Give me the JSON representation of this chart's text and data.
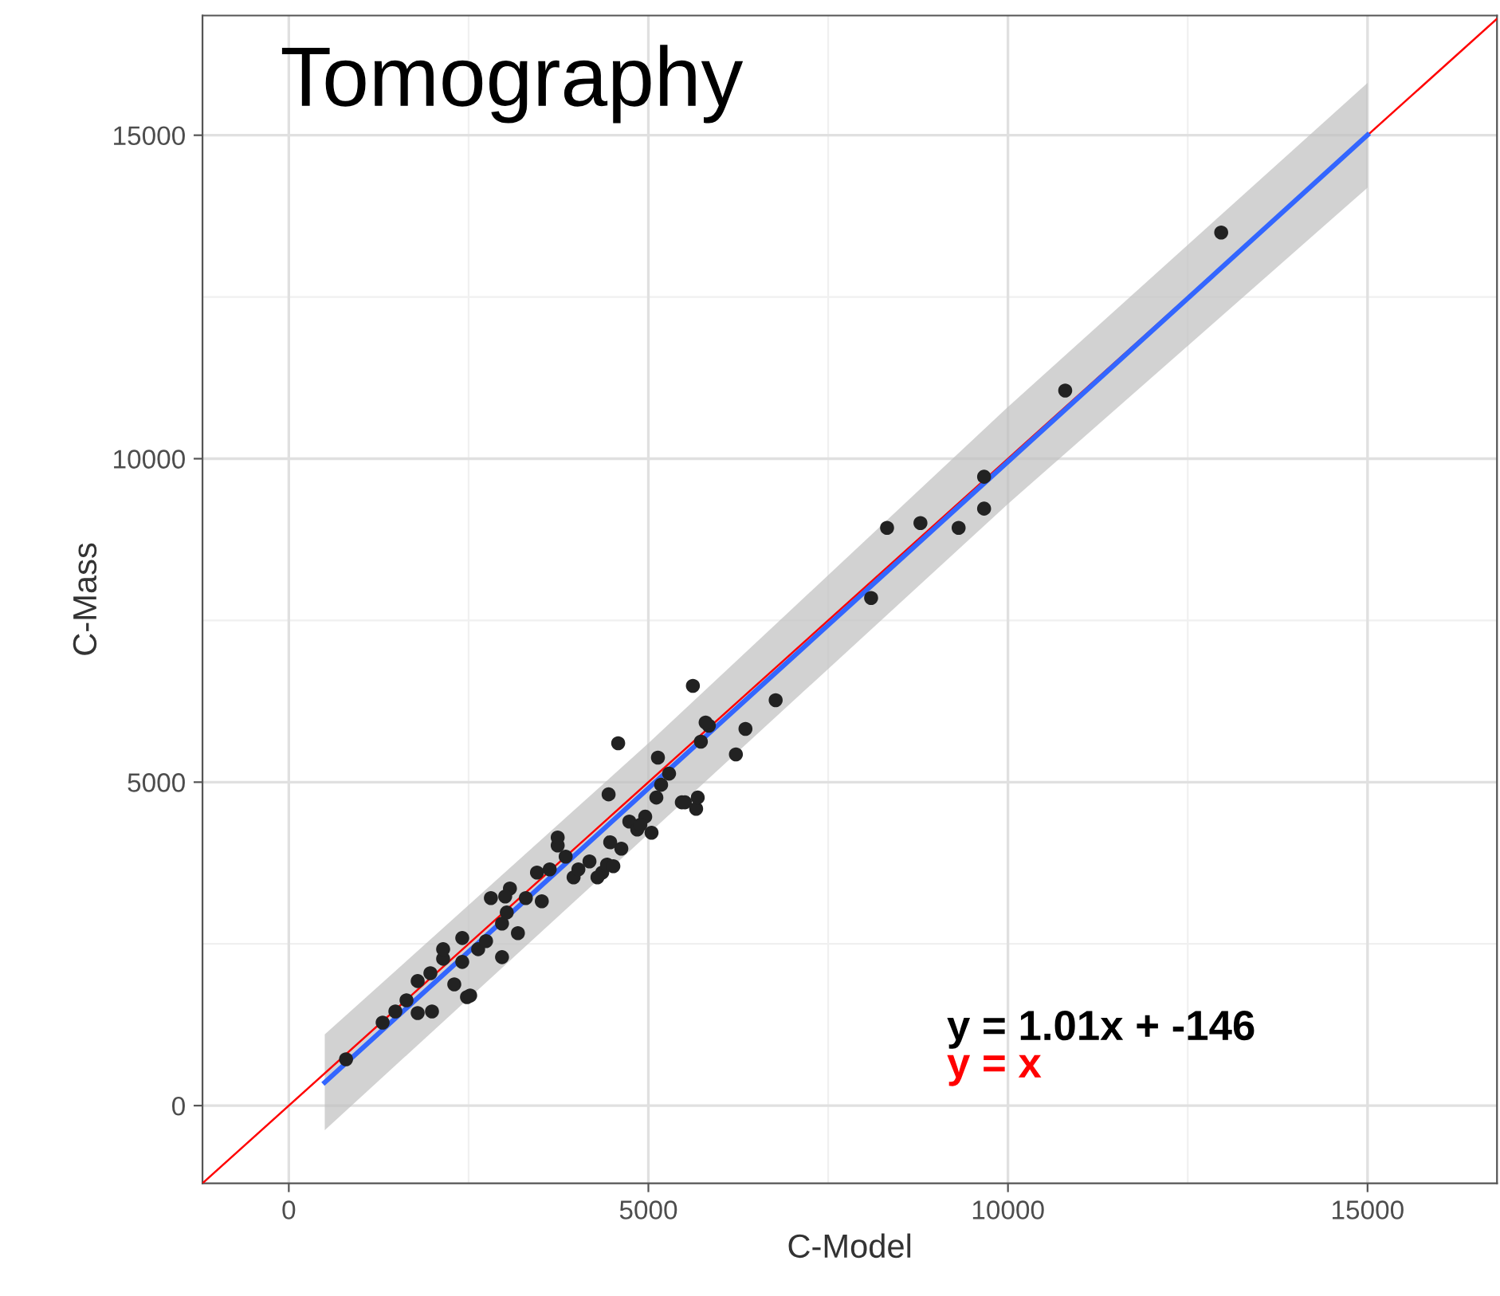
{
  "chart_data": {
    "type": "scatter",
    "title": "Tomography",
    "xlabel": "C-Model",
    "ylabel": "C-Mass",
    "annotations": [
      "y = 1.01x + -146"
    ],
    "xlim": [
      -1200,
      16800
    ],
    "ylim": [
      -1200,
      16850
    ],
    "xticks": [
      0,
      5000,
      10000,
      15000
    ],
    "yticks": [
      0,
      5000,
      10000,
      15000
    ],
    "grid": true,
    "marker": "circle",
    "series": [
      {
        "type": "line",
        "name": "y = x",
        "color": "#ff0000",
        "x": [
          -1200,
          16800
        ],
        "values": [
          -1200,
          16800
        ],
        "marker": "none"
      },
      {
        "type": "line",
        "color": "#3366ff",
        "x": [
          500,
          5000,
          10000,
          15000
        ],
        "values": [
          359,
          4904,
          9954,
          15004
        ],
        "lower": [
          -380,
          4200,
          9300,
          14190
        ],
        "upper": [
          1100,
          5600,
          10800,
          15810
        ],
        "marker": "none"
      },
      {
        "color": "#222222",
        "x": [
          796,
          1305,
          1482,
          1637,
          1792,
          1969,
          2146,
          1792,
          1991,
          2478,
          2522,
          2301,
          2412,
          2633,
          2743,
          2965,
          3031,
          2810,
          3075,
          3296,
          3518,
          2965,
          3186,
          3628,
          3739,
          3850,
          3960,
          4181,
          4358,
          4425,
          4469,
          4513,
          4624,
          4735,
          4845,
          4956,
          5044,
          4580,
          5111,
          5177,
          5133,
          5288,
          5509,
          5664,
          5686,
          5619,
          5730,
          5841,
          6217,
          6350,
          6770,
          8097,
          8319,
          8783,
          9314,
          9668,
          9668,
          10796,
          12965,
          2146,
          2412,
          3009,
          3451,
          3739,
          4027,
          4292,
          4447,
          4889,
          5465,
          5796
        ],
        "values": [
          716,
          1283,
          1456,
          1628,
          1925,
          2048,
          2270,
          1431,
          1456,
          1678,
          1702,
          1875,
          2221,
          2418,
          2542,
          2813,
          2985,
          3208,
          3356,
          3208,
          3159,
          2295,
          2665,
          3652,
          4022,
          3849,
          3528,
          3775,
          3602,
          3726,
          4071,
          3701,
          3972,
          4392,
          4268,
          4466,
          4219,
          5601,
          4762,
          4959,
          5379,
          5132,
          4688,
          4589,
          4762,
          6489,
          5626,
          5872,
          5428,
          5823,
          6267,
          7846,
          8932,
          9006,
          8932,
          9721,
          9228,
          11054,
          13496,
          2418,
          2591,
          3232,
          3602,
          4145,
          3652,
          3528,
          4811,
          4342,
          4688,
          5922
        ]
      }
    ]
  }
}
